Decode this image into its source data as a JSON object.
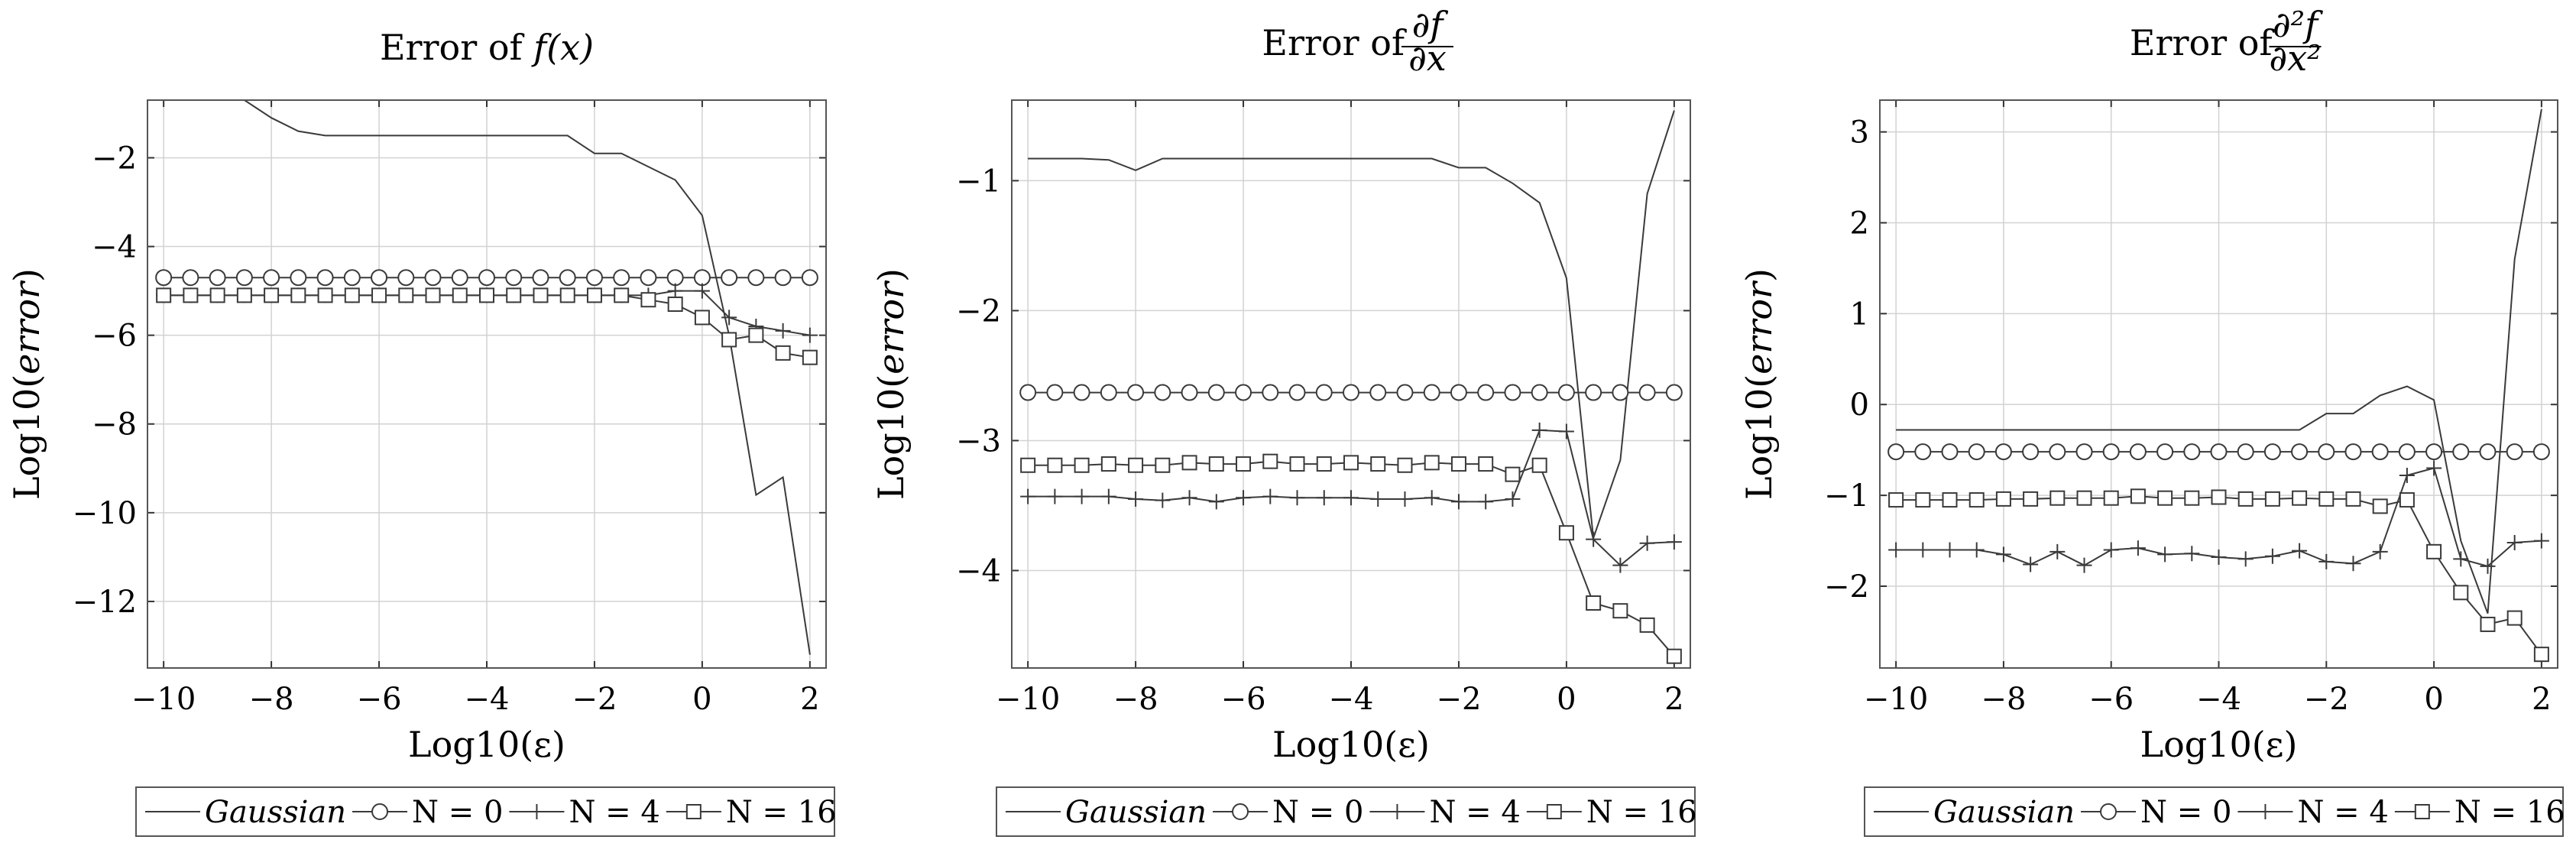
{
  "chart_data": [
    {
      "type": "line",
      "title": "Error of f(x)",
      "title_parts": {
        "prefix": "Error of ",
        "expr": "f(x)"
      },
      "xlabel": "Log10(ε)",
      "ylabel": "Log10(error)",
      "xlim": [
        -10.3,
        2.3
      ],
      "ylim": [
        -13.5,
        -0.7
      ],
      "xticks": [
        -10,
        -8,
        -6,
        -4,
        -2,
        0,
        2
      ],
      "yticks": [
        -12,
        -10,
        -8,
        -6,
        -4,
        -2
      ],
      "x": [
        -10,
        -9.5,
        -9,
        -8.5,
        -8,
        -7.5,
        -7,
        -6.5,
        -6,
        -5.5,
        -5,
        -4.5,
        -4,
        -3.5,
        -3,
        -2.5,
        -2,
        -1.5,
        -1,
        -0.5,
        0,
        0.5,
        1,
        1.5,
        2
      ],
      "series": [
        {
          "name": "Gaussian",
          "marker": "none",
          "values": [
            -0.7,
            -0.7,
            -0.7,
            -0.7,
            -1.1,
            -1.4,
            -1.5,
            -1.5,
            -1.5,
            -1.5,
            -1.5,
            -1.5,
            -1.5,
            -1.5,
            -1.5,
            -1.5,
            -1.9,
            -1.9,
            -2.2,
            -2.5,
            -3.3,
            -6.0,
            -9.6,
            -9.2,
            -13.2
          ]
        },
        {
          "name": "N = 0",
          "marker": "circle",
          "values": [
            -4.7,
            -4.7,
            -4.7,
            -4.7,
            -4.7,
            -4.7,
            -4.7,
            -4.7,
            -4.7,
            -4.7,
            -4.7,
            -4.7,
            -4.7,
            -4.7,
            -4.7,
            -4.7,
            -4.7,
            -4.7,
            -4.7,
            -4.7,
            -4.7,
            -4.7,
            -4.7,
            -4.7,
            -4.7
          ]
        },
        {
          "name": "N = 4",
          "marker": "plus",
          "values": [
            -5.1,
            -5.1,
            -5.1,
            -5.1,
            -5.1,
            -5.1,
            -5.1,
            -5.1,
            -5.1,
            -5.1,
            -5.1,
            -5.1,
            -5.1,
            -5.1,
            -5.1,
            -5.1,
            -5.1,
            -5.1,
            -5.1,
            -5.0,
            -5.0,
            -5.6,
            -5.8,
            -5.9,
            -6.0
          ]
        },
        {
          "name": "N = 16",
          "marker": "square",
          "values": [
            -5.1,
            -5.1,
            -5.1,
            -5.1,
            -5.1,
            -5.1,
            -5.1,
            -5.1,
            -5.1,
            -5.1,
            -5.1,
            -5.1,
            -5.1,
            -5.1,
            -5.1,
            -5.1,
            -5.1,
            -5.1,
            -5.2,
            -5.3,
            -5.6,
            -6.1,
            -6.0,
            -6.4,
            -6.5
          ]
        }
      ],
      "legend": "below"
    },
    {
      "type": "line",
      "title": "Error of ∂f/∂x",
      "title_parts": {
        "prefix": "Error of ",
        "num": "∂f",
        "den": "∂x"
      },
      "xlabel": "Log10(ε)",
      "ylabel": "Log10(error)",
      "xlim": [
        -10.3,
        2.3
      ],
      "ylim": [
        -4.75,
        -0.38
      ],
      "xticks": [
        -10,
        -8,
        -6,
        -4,
        -2,
        0,
        2
      ],
      "yticks": [
        -4,
        -3,
        -2,
        -1
      ],
      "x": [
        -10,
        -9.5,
        -9,
        -8.5,
        -8,
        -7.5,
        -7,
        -6.5,
        -6,
        -5.5,
        -5,
        -4.5,
        -4,
        -3.5,
        -3,
        -2.5,
        -2,
        -1.5,
        -1,
        -0.5,
        0,
        0.5,
        1,
        1.5,
        2
      ],
      "series": [
        {
          "name": "Gaussian",
          "marker": "none",
          "values": [
            -0.83,
            -0.83,
            -0.83,
            -0.84,
            -0.92,
            -0.83,
            -0.83,
            -0.83,
            -0.83,
            -0.83,
            -0.83,
            -0.83,
            -0.83,
            -0.83,
            -0.83,
            -0.83,
            -0.9,
            -0.9,
            -1.02,
            -1.17,
            -1.75,
            -3.75,
            -3.15,
            -1.1,
            -0.46
          ]
        },
        {
          "name": "N = 0",
          "marker": "circle",
          "values": [
            -2.63,
            -2.63,
            -2.63,
            -2.63,
            -2.63,
            -2.63,
            -2.63,
            -2.63,
            -2.63,
            -2.63,
            -2.63,
            -2.63,
            -2.63,
            -2.63,
            -2.63,
            -2.63,
            -2.63,
            -2.63,
            -2.63,
            -2.63,
            -2.63,
            -2.63,
            -2.63,
            -2.63,
            -2.63
          ]
        },
        {
          "name": "N = 4",
          "marker": "plus",
          "values": [
            -3.43,
            -3.43,
            -3.43,
            -3.43,
            -3.45,
            -3.46,
            -3.44,
            -3.47,
            -3.44,
            -3.43,
            -3.44,
            -3.44,
            -3.44,
            -3.45,
            -3.45,
            -3.44,
            -3.47,
            -3.47,
            -3.45,
            -2.92,
            -2.93,
            -3.76,
            -3.96,
            -3.79,
            -3.78
          ]
        },
        {
          "name": "N = 16",
          "marker": "square",
          "values": [
            -3.19,
            -3.19,
            -3.19,
            -3.18,
            -3.19,
            -3.19,
            -3.17,
            -3.18,
            -3.18,
            -3.16,
            -3.18,
            -3.18,
            -3.17,
            -3.18,
            -3.19,
            -3.17,
            -3.18,
            -3.18,
            -3.26,
            -3.19,
            -3.71,
            -4.25,
            -4.31,
            -4.42,
            -4.66
          ]
        }
      ],
      "legend": "below"
    },
    {
      "type": "line",
      "title": "Error of ∂²f/∂x²",
      "title_parts": {
        "prefix": "Error of ",
        "num": "∂²f",
        "den": "∂x²"
      },
      "xlabel": "Log10(ε)",
      "ylabel": "Log10(error)",
      "xlim": [
        -10.3,
        2.3
      ],
      "ylim": [
        -2.9,
        3.35
      ],
      "xticks": [
        -10,
        -8,
        -6,
        -4,
        -2,
        0,
        2
      ],
      "yticks": [
        -2,
        -1,
        0,
        1,
        2,
        3
      ],
      "x": [
        -10,
        -9.5,
        -9,
        -8.5,
        -8,
        -7.5,
        -7,
        -6.5,
        -6,
        -5.5,
        -5,
        -4.5,
        -4,
        -3.5,
        -3,
        -2.5,
        -2,
        -1.5,
        -1,
        -0.5,
        0,
        0.5,
        1,
        1.5,
        2
      ],
      "series": [
        {
          "name": "Gaussian",
          "marker": "none",
          "values": [
            -0.28,
            -0.28,
            -0.28,
            -0.28,
            -0.28,
            -0.28,
            -0.28,
            -0.28,
            -0.28,
            -0.28,
            -0.28,
            -0.28,
            -0.28,
            -0.28,
            -0.28,
            -0.28,
            -0.1,
            -0.1,
            0.1,
            0.2,
            0.05,
            -1.5,
            -2.3,
            1.6,
            3.25
          ]
        },
        {
          "name": "N = 0",
          "marker": "circle",
          "values": [
            -0.52,
            -0.52,
            -0.52,
            -0.52,
            -0.52,
            -0.52,
            -0.52,
            -0.52,
            -0.52,
            -0.52,
            -0.52,
            -0.52,
            -0.52,
            -0.52,
            -0.52,
            -0.52,
            -0.52,
            -0.52,
            -0.52,
            -0.52,
            -0.52,
            -0.52,
            -0.52,
            -0.52,
            -0.52
          ]
        },
        {
          "name": "N = 4",
          "marker": "plus",
          "values": [
            -1.6,
            -1.6,
            -1.6,
            -1.6,
            -1.65,
            -1.76,
            -1.62,
            -1.77,
            -1.6,
            -1.58,
            -1.65,
            -1.64,
            -1.68,
            -1.7,
            -1.67,
            -1.61,
            -1.73,
            -1.75,
            -1.62,
            -0.78,
            -0.7,
            -1.7,
            -1.78,
            -1.52,
            -1.5
          ]
        },
        {
          "name": "N = 16",
          "marker": "square",
          "values": [
            -1.05,
            -1.05,
            -1.05,
            -1.05,
            -1.04,
            -1.04,
            -1.03,
            -1.03,
            -1.03,
            -1.01,
            -1.03,
            -1.03,
            -1.02,
            -1.04,
            -1.04,
            -1.03,
            -1.04,
            -1.04,
            -1.12,
            -1.05,
            -1.62,
            -2.07,
            -2.42,
            -2.35,
            -2.75
          ]
        }
      ],
      "legend": "below"
    }
  ],
  "legend_labels": {
    "gaussian": "Gaussian",
    "n0": "N = 0",
    "n4": "N = 4",
    "n16": "N = 16"
  }
}
